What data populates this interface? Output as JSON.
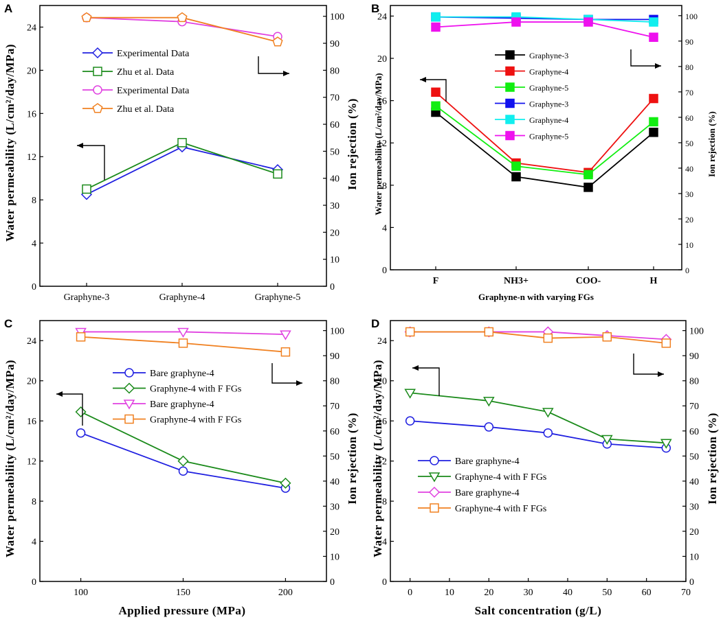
{
  "figure": {
    "panel_letters": [
      "A",
      "B",
      "C",
      "D"
    ]
  },
  "chart_data": [
    {
      "panel": "A",
      "type": "line",
      "title": "",
      "xlabel": "",
      "ylabel": "Water permeability (L/cm²/day/MPa)",
      "ylabel_right": "Ion rejection (%)",
      "categories": [
        "Graphyne-3",
        "Graphyne-4",
        "Graphyne-5"
      ],
      "ylim": [
        0,
        26
      ],
      "y_ticks": [
        0,
        4,
        8,
        12,
        16,
        20,
        24
      ],
      "ylim_right": [
        0,
        104
      ],
      "y_ticks_right": [
        0,
        10,
        20,
        30,
        40,
        50,
        60,
        70,
        80,
        90,
        100
      ],
      "legend_position": "top-center",
      "series": [
        {
          "name": "Experimental Data",
          "axis": "left",
          "color": "#1f1fe0",
          "marker": "diamond",
          "values": [
            8.5,
            12.9,
            10.8
          ]
        },
        {
          "name": "Zhu et al. Data",
          "axis": "left",
          "color": "#1a8a1a",
          "marker": "square",
          "values": [
            9.0,
            13.3,
            10.4
          ]
        },
        {
          "name": "Experimental Data",
          "axis": "right",
          "color": "#e040e0",
          "marker": "circle",
          "values": [
            99.5,
            98,
            92.5
          ]
        },
        {
          "name": "Zhu et al. Data",
          "axis": "right",
          "color": "#f08020",
          "marker": "pentagon",
          "values": [
            99.5,
            99.5,
            90.5
          ]
        }
      ]
    },
    {
      "panel": "B",
      "type": "line",
      "title": "",
      "xlabel": "Graphyne-n with varying FGs",
      "ylabel": "Water permeability (L/cm²/day/MPa)",
      "ylabel_right": "Ion rejection (%)",
      "categories": [
        "F",
        "NH3+",
        "COO-",
        "H"
      ],
      "ylim": [
        0,
        25
      ],
      "y_ticks": [
        0,
        4,
        8,
        12,
        16,
        20,
        24
      ],
      "ylim_right": [
        0,
        104
      ],
      "y_ticks_right": [
        0,
        10,
        20,
        30,
        40,
        50,
        60,
        70,
        80,
        90,
        100
      ],
      "legend_position": "top-center",
      "series": [
        {
          "name": "Graphyne-3",
          "axis": "left",
          "color": "#000000",
          "marker": "filled-square",
          "values": [
            14.9,
            8.8,
            7.8,
            13.0
          ]
        },
        {
          "name": "Graphyne-4",
          "axis": "left",
          "color": "#ee1111",
          "marker": "filled-square",
          "values": [
            16.8,
            10.1,
            9.2,
            16.2
          ]
        },
        {
          "name": "Graphyne-5",
          "axis": "left",
          "color": "#11ee11",
          "marker": "filled-square",
          "values": [
            15.5,
            9.8,
            9.0,
            14.0
          ]
        },
        {
          "name": "Graphyne-3",
          "axis": "right",
          "color": "#1111ee",
          "marker": "filled-square",
          "values": [
            99.5,
            99.0,
            98.5,
            98.5
          ]
        },
        {
          "name": "Graphyne-4",
          "axis": "right",
          "color": "#11eeee",
          "marker": "filled-square",
          "values": [
            99.5,
            99.5,
            98.5,
            97.5
          ]
        },
        {
          "name": "Graphyne-5",
          "axis": "right",
          "color": "#ee11ee",
          "marker": "filled-square",
          "values": [
            95.5,
            97.5,
            97.5,
            91.5
          ]
        }
      ]
    },
    {
      "panel": "C",
      "type": "line",
      "title": "",
      "xlabel": "Applied pressure (MPa)",
      "ylabel": "Water permeability (L/cm²/day/MPa)",
      "ylabel_right": "Ion rejection (%)",
      "x": [
        100,
        150,
        200
      ],
      "xlim": [
        80,
        220
      ],
      "x_ticks": [
        100,
        150,
        200
      ],
      "ylim": [
        0,
        26
      ],
      "y_ticks": [
        0,
        4,
        8,
        12,
        16,
        20,
        24
      ],
      "ylim_right": [
        0,
        104
      ],
      "y_ticks_right": [
        0,
        10,
        20,
        30,
        40,
        50,
        60,
        70,
        80,
        90,
        100
      ],
      "legend_position": "center",
      "series": [
        {
          "name": "Bare graphyne-4",
          "axis": "left",
          "color": "#1f1fe0",
          "marker": "circle",
          "values": [
            14.8,
            11.0,
            9.3
          ]
        },
        {
          "name": "Graphyne-4 with F FGs",
          "axis": "left",
          "color": "#1a8a1a",
          "marker": "diamond",
          "values": [
            16.9,
            12.0,
            9.8
          ]
        },
        {
          "name": "Bare graphyne-4",
          "axis": "right",
          "color": "#e040e0",
          "marker": "triangle-down",
          "values": [
            99.5,
            99.5,
            98.5
          ]
        },
        {
          "name": "Graphyne-4 with F FGs",
          "axis": "right",
          "color": "#f08020",
          "marker": "square",
          "values": [
            97.5,
            95,
            91.5
          ]
        }
      ]
    },
    {
      "panel": "D",
      "type": "line",
      "title": "",
      "xlabel": "Salt concentration (g/L)",
      "ylabel": "Water permeability (L/cm²/day/MPa)",
      "ylabel_right": "Ion rejection (%)",
      "x": [
        0,
        20,
        35,
        50,
        65
      ],
      "xlim": [
        -5,
        70
      ],
      "x_ticks": [
        0,
        10,
        20,
        30,
        40,
        50,
        60,
        70
      ],
      "ylim": [
        0,
        26
      ],
      "y_ticks": [
        0,
        4,
        8,
        12,
        16,
        20,
        24
      ],
      "ylim_right": [
        0,
        104
      ],
      "y_ticks_right": [
        0,
        10,
        20,
        30,
        40,
        50,
        60,
        70,
        80,
        90,
        100
      ],
      "legend_position": "bottom-left",
      "series": [
        {
          "name": "Bare graphyne-4",
          "axis": "left",
          "color": "#1f1fe0",
          "marker": "circle",
          "values": [
            16.0,
            15.4,
            14.8,
            13.7,
            13.3
          ]
        },
        {
          "name": "Graphyne-4 with F FGs",
          "axis": "left",
          "color": "#1a8a1a",
          "marker": "triangle-down",
          "values": [
            18.8,
            18.0,
            16.9,
            14.2,
            13.8
          ]
        },
        {
          "name": "Bare graphyne-4",
          "axis": "right",
          "color": "#e040e0",
          "marker": "diamond",
          "values": [
            99.5,
            99.5,
            99.5,
            98.0,
            96.5
          ]
        },
        {
          "name": "Graphyne-4 with F FGs",
          "axis": "right",
          "color": "#f08020",
          "marker": "square",
          "values": [
            99.5,
            99.5,
            97.0,
            97.5,
            95.0
          ]
        }
      ]
    }
  ]
}
